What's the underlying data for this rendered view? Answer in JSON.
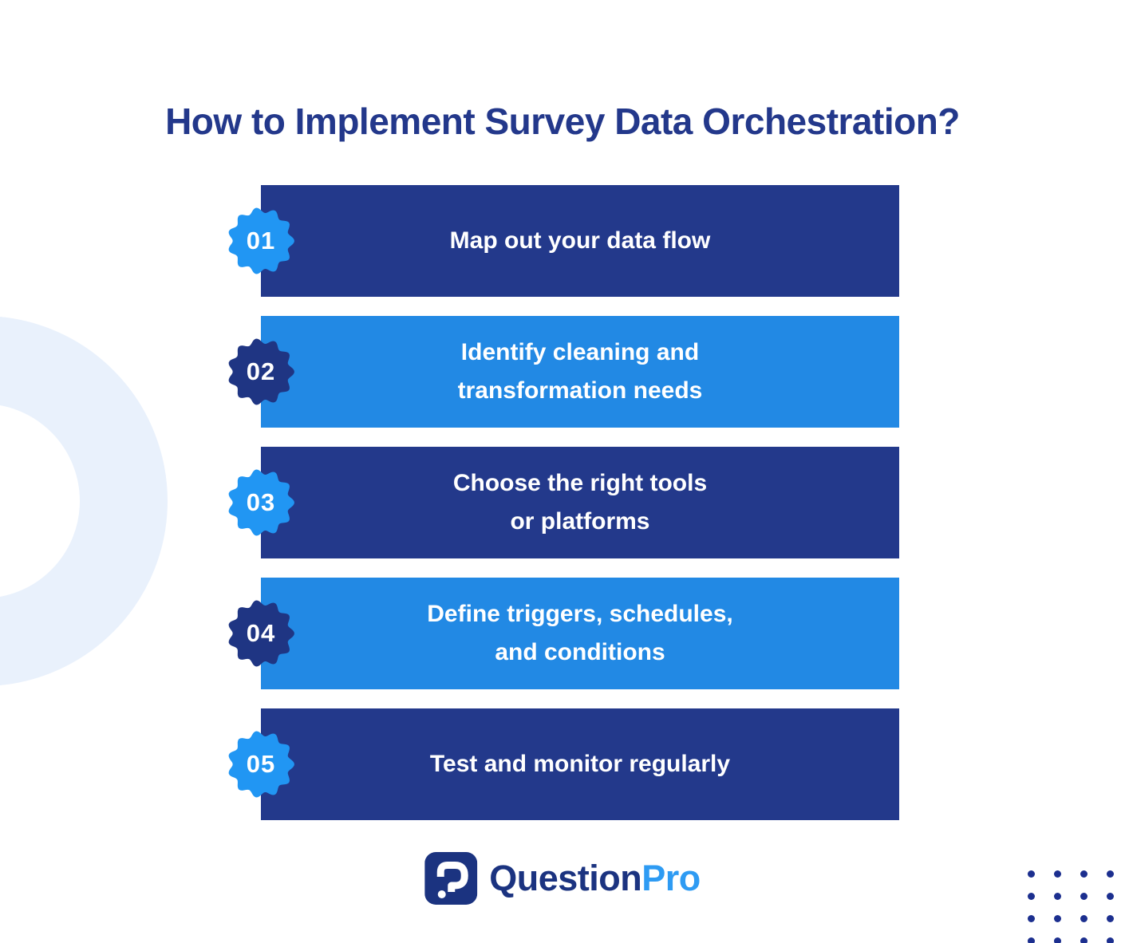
{
  "title": "How to Implement Survey Data Orchestration?",
  "steps": [
    {
      "number": "01",
      "label": "Map out your data flow",
      "bar_color": "#23398B",
      "badge_color": "#2196F3"
    },
    {
      "number": "02",
      "label": "Identify cleaning and\ntransformation needs",
      "bar_color": "#2289E4",
      "badge_color": "#1F3583"
    },
    {
      "number": "03",
      "label": "Choose the right tools\nor platforms",
      "bar_color": "#23398B",
      "badge_color": "#2196F3"
    },
    {
      "number": "04",
      "label": "Define triggers, schedules,\nand conditions",
      "bar_color": "#2289E4",
      "badge_color": "#1F3583"
    },
    {
      "number": "05",
      "label": "Test and monitor regularly",
      "bar_color": "#23398B",
      "badge_color": "#2196F3"
    }
  ],
  "logo": {
    "text_primary": "Question",
    "text_secondary": "Pro",
    "icon": "questionpro-question-mark-icon",
    "icon_color": "#1B3380",
    "text_primary_color": "#1B3380",
    "text_secondary_color": "#2E9BF3"
  },
  "decor": {
    "background_color": "#FFFFFF",
    "ring_color": "#E9F1FC",
    "dots_color": "#1C2F8F",
    "dots_rows": 4,
    "dots_cols": 4
  }
}
